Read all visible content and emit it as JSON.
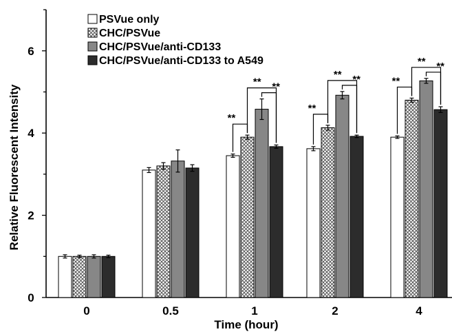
{
  "chart_data": {
    "type": "bar",
    "title": "",
    "xlabel": "Time (hour)",
    "ylabel": "Relative Fluorescent Intensity",
    "ylim": [
      0,
      7
    ],
    "yticks": [
      "0",
      "2",
      "4",
      "6"
    ],
    "categories": [
      "0",
      "0.5",
      "1",
      "2",
      "4"
    ],
    "grid": false,
    "legend_position": "top-left",
    "series": [
      {
        "name": "PSVue only",
        "fill": "#ffffff",
        "pattern": "none",
        "values": [
          1.0,
          3.1,
          3.45,
          3.62,
          3.9
        ],
        "errors": [
          0.04,
          0.06,
          0.04,
          0.05,
          0.03
        ]
      },
      {
        "name": "CHC/PSVue",
        "fill": "#ffffff",
        "pattern": "crosshatch",
        "values": [
          1.0,
          3.2,
          3.9,
          4.13,
          4.8
        ],
        "errors": [
          0.03,
          0.08,
          0.05,
          0.06,
          0.05
        ]
      },
      {
        "name": "CHC/PSVue/anti-CD133",
        "fill": "#878787",
        "pattern": "none",
        "values": [
          1.0,
          3.32,
          4.58,
          4.92,
          5.27
        ],
        "errors": [
          0.04,
          0.27,
          0.25,
          0.09,
          0.06
        ]
      },
      {
        "name": "CHC/PSVue/anti-CD133 to A549",
        "fill": "#2c2c2c",
        "pattern": "none",
        "values": [
          1.0,
          3.15,
          3.67,
          3.92,
          4.57
        ],
        "errors": [
          0.03,
          0.08,
          0.04,
          0.03,
          0.07
        ]
      }
    ],
    "significance": [
      {
        "category": "1",
        "pair": [
          0,
          1
        ],
        "label": "**"
      },
      {
        "category": "1",
        "pair": [
          1,
          3
        ],
        "label": "**"
      },
      {
        "category": "1",
        "pair": [
          2,
          3
        ],
        "label": "**"
      },
      {
        "category": "2",
        "pair": [
          0,
          1
        ],
        "label": "**"
      },
      {
        "category": "2",
        "pair": [
          1,
          3
        ],
        "label": "**"
      },
      {
        "category": "2",
        "pair": [
          2,
          3
        ],
        "label": "**"
      },
      {
        "category": "4",
        "pair": [
          0,
          1
        ],
        "label": "**"
      },
      {
        "category": "4",
        "pair": [
          1,
          3
        ],
        "label": "**"
      },
      {
        "category": "4",
        "pair": [
          2,
          3
        ],
        "label": "**"
      }
    ]
  }
}
